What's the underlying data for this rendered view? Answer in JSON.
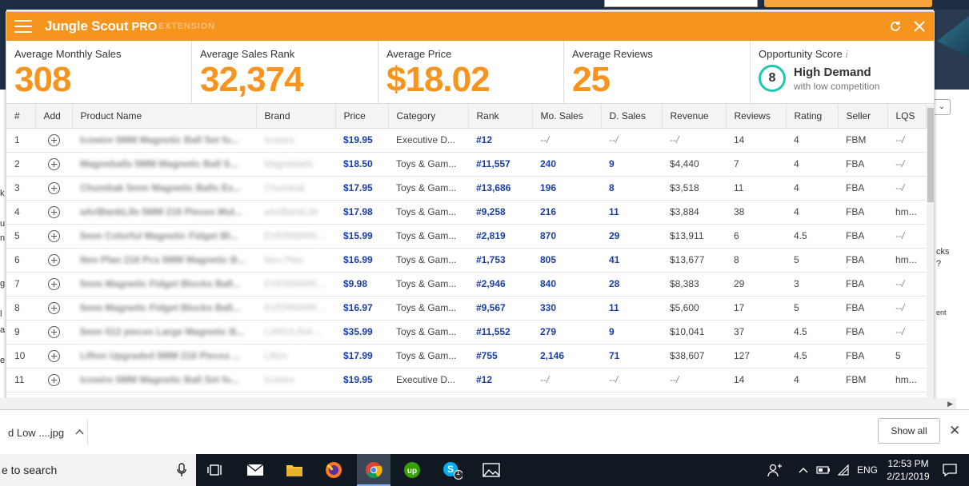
{
  "extension": {
    "brand": "Jungle Scout",
    "pro": "PRO",
    "edition": "EXTENSION"
  },
  "stats": [
    {
      "label": "Average Monthly Sales",
      "value": "308"
    },
    {
      "label": "Average Sales Rank",
      "value": "32,374"
    },
    {
      "label": "Average Price",
      "value": "$18.02"
    },
    {
      "label": "Average Reviews",
      "value": "25"
    }
  ],
  "opportunity": {
    "label": "Opportunity Score",
    "info": "i",
    "score": "8",
    "title": "High Demand",
    "subtitle": "with low competition"
  },
  "table": {
    "columns": [
      "#",
      "Add",
      "Product Name",
      "Brand",
      "Price",
      "Category",
      "Rank",
      "Mo. Sales",
      "D. Sales",
      "Revenue",
      "Reviews",
      "Rating",
      "Seller",
      "LQS"
    ],
    "rows": [
      {
        "num": "1",
        "name": "Icowire 5MM Magnetic Ball Set fo...",
        "brand": "Icowire",
        "price": "$19.95",
        "category": "Executive D...",
        "rank": "#12",
        "mo_sales": "--/",
        "d_sales": "--/",
        "revenue": "--/",
        "reviews": "14",
        "rating": "4",
        "seller": "FBM",
        "lqs": "--/"
      },
      {
        "num": "2",
        "name": "Magneballs 5MM Magnetic Ball S...",
        "brand": "Magneballs",
        "price": "$18.50",
        "category": "Toys & Gam...",
        "rank": "#11,557",
        "mo_sales": "240",
        "d_sales": "9",
        "revenue": "$4,440",
        "reviews": "7",
        "rating": "4",
        "seller": "FBA",
        "lqs": "--/"
      },
      {
        "num": "3",
        "name": "Chumbak 5mm Magnetic Balls Ex...",
        "brand": "Chumbak",
        "price": "$17.95",
        "category": "Toys & Gam...",
        "rank": "#13,686",
        "mo_sales": "196",
        "d_sales": "8",
        "revenue": "$3,518",
        "reviews": "11",
        "rating": "4",
        "seller": "FBA",
        "lqs": "--/"
      },
      {
        "num": "4",
        "name": "aAriBankLife 5MM 216 Pieces Mul...",
        "brand": "aAriBankLife",
        "price": "$17.98",
        "category": "Toys & Gam...",
        "rank": "#9,258",
        "mo_sales": "216",
        "d_sales": "11",
        "revenue": "$3,884",
        "reviews": "38",
        "rating": "4",
        "seller": "FBA",
        "lqs": "hm..."
      },
      {
        "num": "5",
        "name": "5mm Colorful Magnetic Fidget Bl...",
        "brand": "EVERMARK...",
        "price": "$15.99",
        "category": "Toys & Gam...",
        "rank": "#2,819",
        "mo_sales": "870",
        "d_sales": "29",
        "revenue": "$13,911",
        "reviews": "6",
        "rating": "4.5",
        "seller": "FBA",
        "lqs": "--/"
      },
      {
        "num": "6",
        "name": "Neo Plan 216 Pcs 5MM Magnetic B...",
        "brand": "Neo Plan",
        "price": "$16.99",
        "category": "Toys & Gam...",
        "rank": "#1,753",
        "mo_sales": "805",
        "d_sales": "41",
        "revenue": "$13,677",
        "reviews": "8",
        "rating": "5",
        "seller": "FBA",
        "lqs": "hm..."
      },
      {
        "num": "7",
        "name": "5mm Magnetic Fidget Blocks Ball...",
        "brand": "EVERMARK...",
        "price": "$9.98",
        "category": "Toys & Gam...",
        "rank": "#2,946",
        "mo_sales": "840",
        "d_sales": "28",
        "revenue": "$8,383",
        "reviews": "29",
        "rating": "3",
        "seller": "FBA",
        "lqs": "--/"
      },
      {
        "num": "8",
        "name": "5mm Magnetic Fidget Blocks Ball...",
        "brand": "EVERMARK...",
        "price": "$16.97",
        "category": "Toys & Gam...",
        "rank": "#9,567",
        "mo_sales": "330",
        "d_sales": "11",
        "revenue": "$5,600",
        "reviews": "17",
        "rating": "5",
        "seller": "FBA",
        "lqs": "--/"
      },
      {
        "num": "9",
        "name": "5mm 512 pieces Large Magnetic B...",
        "brand": "CAROLINA ...",
        "price": "$35.99",
        "category": "Toys & Gam...",
        "rank": "#11,552",
        "mo_sales": "279",
        "d_sales": "9",
        "revenue": "$10,041",
        "reviews": "37",
        "rating": "4.5",
        "seller": "FBA",
        "lqs": "--/"
      },
      {
        "num": "10",
        "name": "Lifton Upgraded 5MM 216 Pieces ...",
        "brand": "Lifton",
        "price": "$17.99",
        "category": "Toys & Gam...",
        "rank": "#755",
        "mo_sales": "2,146",
        "d_sales": "71",
        "revenue": "$38,607",
        "reviews": "127",
        "rating": "4.5",
        "seller": "FBA",
        "lqs": "5"
      },
      {
        "num": "11",
        "name": "Icowire 5MM Magnetic Ball Set fo...",
        "brand": "Icowire",
        "price": "$19.95",
        "category": "Executive D...",
        "rank": "#12",
        "mo_sales": "--/",
        "d_sales": "--/",
        "revenue": "--/",
        "reviews": "14",
        "rating": "4",
        "seller": "FBM",
        "lqs": "hm..."
      }
    ]
  },
  "background": {
    "left_fragments": [
      "k",
      "u",
      "n",
      "g",
      "l",
      "a",
      "e"
    ],
    "right_fragments": [
      "cks",
      "?",
      "ent"
    ],
    "select_glyph": "⌄"
  },
  "downloads": {
    "item": "d Low ....jpg",
    "show_all": "Show all"
  },
  "taskbar": {
    "search": "e to search",
    "time": "12:53 PM",
    "date": "2/21/2019",
    "lang": "ENG",
    "skype_badge": "1"
  },
  "colors": {
    "accent": "#f7941d",
    "link_blue": "#1a3fa8",
    "score_ring": "#1cc8b0"
  }
}
